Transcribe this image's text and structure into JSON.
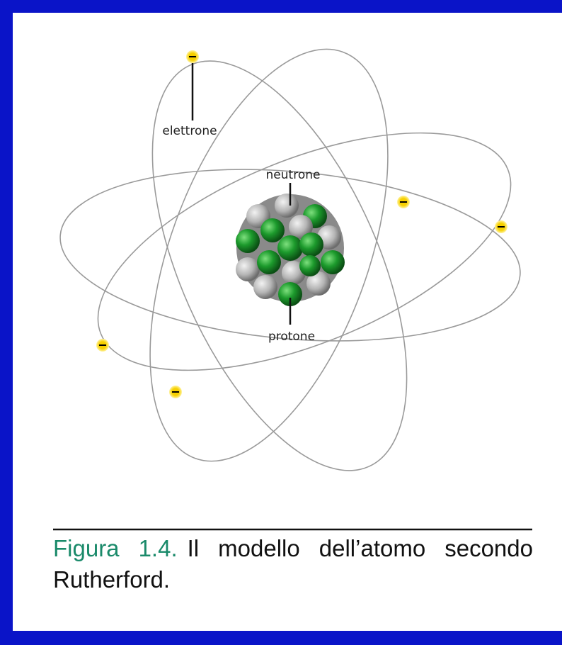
{
  "labels": {
    "electron": "elettrone",
    "neutron": "neutrone",
    "proton": "protone"
  },
  "caption": {
    "label": "Figura 1.4.",
    "text": "Il modello dell’atomo secondo Rutherford."
  }
}
